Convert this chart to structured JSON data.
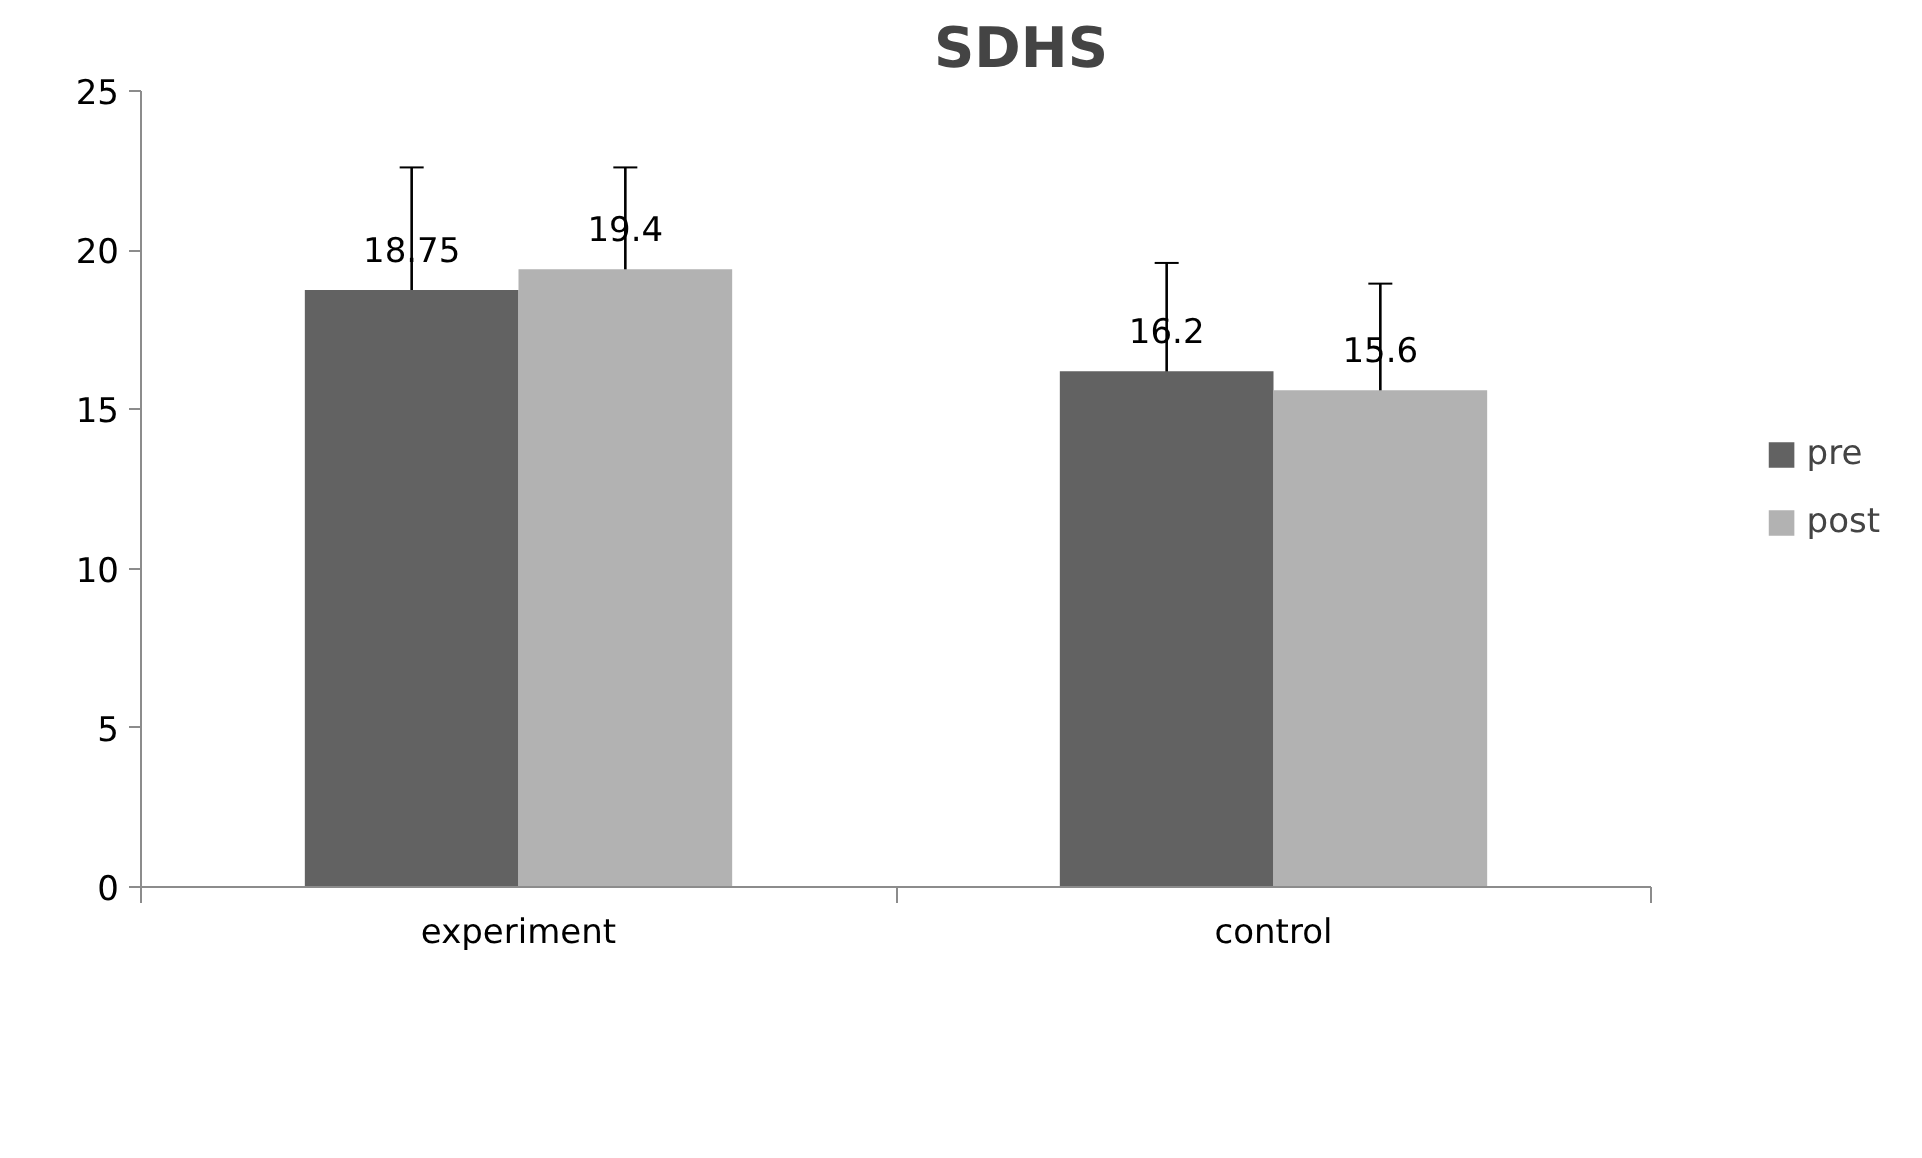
{
  "chart_data": {
    "type": "bar",
    "title": "SDHS",
    "categories": [
      "experiment",
      "control"
    ],
    "series": [
      {
        "name": "pre",
        "color": "#626262",
        "values": [
          18.75,
          16.2
        ],
        "errors": [
          3.85,
          3.4
        ]
      },
      {
        "name": "post",
        "color": "#b2b2b2",
        "values": [
          19.4,
          15.6
        ],
        "errors": [
          3.2,
          3.35
        ]
      }
    ],
    "ylim": [
      0,
      25
    ],
    "yticks": [
      0,
      5,
      10,
      15,
      20,
      25
    ],
    "grid": false,
    "legend": "right",
    "data_labels": true
  }
}
